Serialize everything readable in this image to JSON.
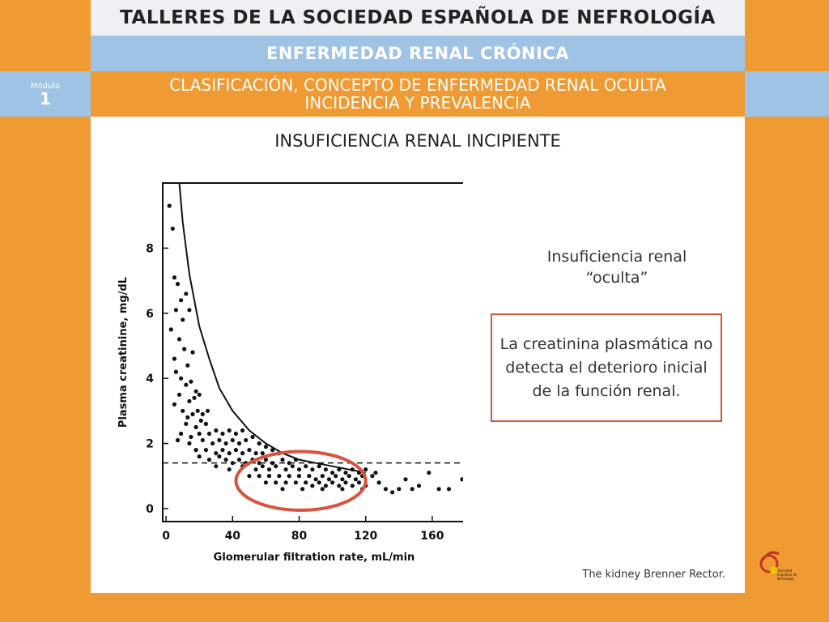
{
  "header": {
    "line1": "TALLERES DE LA SOCIEDAD ESPAÑOLA DE NEFROLOGÍA",
    "line2": "ENFERMEDAD RENAL CRÓNICA",
    "line3a": "CLASIFICACIÓN, CONCEPTO DE ENFERMEDAD RENAL OCULTA",
    "line3b": "INCIDENCIA Y PREVALENCIA"
  },
  "module": {
    "label": "Módulo",
    "number": "1"
  },
  "slide": {
    "title": "INSUFICIENCIA RENAL INCIPIENTE",
    "note_line1": "Insuficiencia renal",
    "note_line2": "“oculta”",
    "box_text": "La creatinina plasmática no detecta el deterioro inicial de la función renal.",
    "source": "The kidney Brenner Rector."
  },
  "logo": {
    "text1": "Sociedad",
    "text2": "Española de",
    "text3": "Nefrología"
  },
  "colors": {
    "orange": "#ef9a32",
    "blue": "#9ec3e4",
    "light": "#eef0f4",
    "highlight": "#d9533f"
  },
  "chart_data": {
    "type": "scatter",
    "xlabel": "Glomerular filtration rate, mL/min",
    "ylabel": "Plasma creatinine, mg/dL",
    "xlim": [
      -2,
      180
    ],
    "ylim": [
      -0.4,
      10
    ],
    "xticks": [
      0,
      40,
      80,
      120,
      160
    ],
    "yticks": [
      0,
      2,
      4,
      6,
      8
    ],
    "reference_line_y": 1.4,
    "highlight_ellipse": {
      "cx": 81,
      "cy": 0.85,
      "rx": 39,
      "ry": 0.9
    },
    "curve": [
      {
        "x": 8,
        "y": 10
      },
      {
        "x": 10,
        "y": 8.8
      },
      {
        "x": 14,
        "y": 7.2
      },
      {
        "x": 20,
        "y": 5.6
      },
      {
        "x": 26,
        "y": 4.6
      },
      {
        "x": 32,
        "y": 3.7
      },
      {
        "x": 40,
        "y": 3.0
      },
      {
        "x": 50,
        "y": 2.4
      },
      {
        "x": 60,
        "y": 2.0
      },
      {
        "x": 70,
        "y": 1.7
      },
      {
        "x": 80,
        "y": 1.5
      },
      {
        "x": 90,
        "y": 1.4
      },
      {
        "x": 100,
        "y": 1.3
      },
      {
        "x": 110,
        "y": 1.2
      },
      {
        "x": 120,
        "y": 1.1
      }
    ],
    "points": [
      {
        "x": 2,
        "y": 9.3
      },
      {
        "x": 4,
        "y": 8.6
      },
      {
        "x": 5,
        "y": 7.1
      },
      {
        "x": 7,
        "y": 6.9
      },
      {
        "x": 6,
        "y": 6.1
      },
      {
        "x": 3,
        "y": 5.5
      },
      {
        "x": 9,
        "y": 6.4
      },
      {
        "x": 12,
        "y": 6.6
      },
      {
        "x": 10,
        "y": 5.8
      },
      {
        "x": 14,
        "y": 6.1
      },
      {
        "x": 8,
        "y": 5.2
      },
      {
        "x": 11,
        "y": 4.9
      },
      {
        "x": 5,
        "y": 4.6
      },
      {
        "x": 13,
        "y": 4.4
      },
      {
        "x": 16,
        "y": 4.8
      },
      {
        "x": 6,
        "y": 4.2
      },
      {
        "x": 9,
        "y": 4.0
      },
      {
        "x": 12,
        "y": 3.8
      },
      {
        "x": 15,
        "y": 3.9
      },
      {
        "x": 18,
        "y": 3.6
      },
      {
        "x": 8,
        "y": 3.5
      },
      {
        "x": 14,
        "y": 3.3
      },
      {
        "x": 17,
        "y": 3.4
      },
      {
        "x": 20,
        "y": 3.5
      },
      {
        "x": 5,
        "y": 3.2
      },
      {
        "x": 10,
        "y": 3.0
      },
      {
        "x": 13,
        "y": 2.8
      },
      {
        "x": 16,
        "y": 2.9
      },
      {
        "x": 19,
        "y": 3.0
      },
      {
        "x": 22,
        "y": 2.9
      },
      {
        "x": 25,
        "y": 3.0
      },
      {
        "x": 12,
        "y": 2.6
      },
      {
        "x": 18,
        "y": 2.5
      },
      {
        "x": 21,
        "y": 2.7
      },
      {
        "x": 24,
        "y": 2.6
      },
      {
        "x": 9,
        "y": 2.3
      },
      {
        "x": 15,
        "y": 2.2
      },
      {
        "x": 20,
        "y": 2.3
      },
      {
        "x": 26,
        "y": 2.3
      },
      {
        "x": 30,
        "y": 2.4
      },
      {
        "x": 34,
        "y": 2.3
      },
      {
        "x": 38,
        "y": 2.4
      },
      {
        "x": 42,
        "y": 2.3
      },
      {
        "x": 46,
        "y": 2.4
      },
      {
        "x": 7,
        "y": 2.1
      },
      {
        "x": 14,
        "y": 2.0
      },
      {
        "x": 22,
        "y": 2.1
      },
      {
        "x": 28,
        "y": 2.0
      },
      {
        "x": 32,
        "y": 2.1
      },
      {
        "x": 36,
        "y": 2.0
      },
      {
        "x": 40,
        "y": 2.1
      },
      {
        "x": 44,
        "y": 2.0
      },
      {
        "x": 48,
        "y": 2.1
      },
      {
        "x": 52,
        "y": 2.2
      },
      {
        "x": 56,
        "y": 2.0
      },
      {
        "x": 60,
        "y": 1.9
      },
      {
        "x": 18,
        "y": 1.8
      },
      {
        "x": 24,
        "y": 1.8
      },
      {
        "x": 30,
        "y": 1.7
      },
      {
        "x": 34,
        "y": 1.8
      },
      {
        "x": 38,
        "y": 1.7
      },
      {
        "x": 42,
        "y": 1.8
      },
      {
        "x": 46,
        "y": 1.7
      },
      {
        "x": 50,
        "y": 1.8
      },
      {
        "x": 54,
        "y": 1.7
      },
      {
        "x": 58,
        "y": 1.7
      },
      {
        "x": 64,
        "y": 1.8
      },
      {
        "x": 68,
        "y": 1.7
      },
      {
        "x": 20,
        "y": 1.6
      },
      {
        "x": 26,
        "y": 1.5
      },
      {
        "x": 32,
        "y": 1.6
      },
      {
        "x": 36,
        "y": 1.5
      },
      {
        "x": 40,
        "y": 1.4
      },
      {
        "x": 44,
        "y": 1.5
      },
      {
        "x": 48,
        "y": 1.4
      },
      {
        "x": 52,
        "y": 1.5
      },
      {
        "x": 56,
        "y": 1.4
      },
      {
        "x": 60,
        "y": 1.5
      },
      {
        "x": 64,
        "y": 1.4
      },
      {
        "x": 70,
        "y": 1.5
      },
      {
        "x": 74,
        "y": 1.4
      },
      {
        "x": 78,
        "y": 1.5
      },
      {
        "x": 30,
        "y": 1.3
      },
      {
        "x": 38,
        "y": 1.2
      },
      {
        "x": 46,
        "y": 1.3
      },
      {
        "x": 54,
        "y": 1.2
      },
      {
        "x": 58,
        "y": 1.3
      },
      {
        "x": 62,
        "y": 1.2
      },
      {
        "x": 66,
        "y": 1.3
      },
      {
        "x": 72,
        "y": 1.2
      },
      {
        "x": 76,
        "y": 1.3
      },
      {
        "x": 80,
        "y": 1.2
      },
      {
        "x": 84,
        "y": 1.3
      },
      {
        "x": 88,
        "y": 1.2
      },
      {
        "x": 92,
        "y": 1.3
      },
      {
        "x": 96,
        "y": 1.2
      },
      {
        "x": 100,
        "y": 1.1
      },
      {
        "x": 104,
        "y": 1.2
      },
      {
        "x": 108,
        "y": 1.1
      },
      {
        "x": 112,
        "y": 1.2
      },
      {
        "x": 116,
        "y": 1.1
      },
      {
        "x": 120,
        "y": 1.2
      },
      {
        "x": 50,
        "y": 1.0
      },
      {
        "x": 56,
        "y": 1.0
      },
      {
        "x": 62,
        "y": 1.0
      },
      {
        "x": 68,
        "y": 1.0
      },
      {
        "x": 74,
        "y": 1.0
      },
      {
        "x": 80,
        "y": 1.0
      },
      {
        "x": 86,
        "y": 1.0
      },
      {
        "x": 90,
        "y": 0.9
      },
      {
        "x": 94,
        "y": 1.0
      },
      {
        "x": 98,
        "y": 0.9
      },
      {
        "x": 102,
        "y": 1.0
      },
      {
        "x": 106,
        "y": 0.9
      },
      {
        "x": 110,
        "y": 1.0
      },
      {
        "x": 114,
        "y": 0.9
      },
      {
        "x": 118,
        "y": 1.0
      },
      {
        "x": 124,
        "y": 1.0
      },
      {
        "x": 128,
        "y": 0.8
      },
      {
        "x": 60,
        "y": 0.8
      },
      {
        "x": 66,
        "y": 0.8
      },
      {
        "x": 72,
        "y": 0.8
      },
      {
        "x": 78,
        "y": 0.8
      },
      {
        "x": 84,
        "y": 0.8
      },
      {
        "x": 88,
        "y": 0.7
      },
      {
        "x": 92,
        "y": 0.8
      },
      {
        "x": 96,
        "y": 0.7
      },
      {
        "x": 100,
        "y": 0.8
      },
      {
        "x": 104,
        "y": 0.7
      },
      {
        "x": 108,
        "y": 0.8
      },
      {
        "x": 112,
        "y": 0.7
      },
      {
        "x": 116,
        "y": 0.8
      },
      {
        "x": 120,
        "y": 0.7
      },
      {
        "x": 70,
        "y": 0.6
      },
      {
        "x": 82,
        "y": 0.6
      },
      {
        "x": 94,
        "y": 0.6
      },
      {
        "x": 106,
        "y": 0.6
      },
      {
        "x": 118,
        "y": 0.6
      },
      {
        "x": 132,
        "y": 0.6
      },
      {
        "x": 136,
        "y": 0.5
      },
      {
        "x": 140,
        "y": 0.6
      },
      {
        "x": 144,
        "y": 0.9
      },
      {
        "x": 148,
        "y": 0.6
      },
      {
        "x": 126,
        "y": 1.1
      },
      {
        "x": 152,
        "y": 0.7
      },
      {
        "x": 158,
        "y": 1.1
      },
      {
        "x": 164,
        "y": 0.6
      },
      {
        "x": 170,
        "y": 0.6
      },
      {
        "x": 178,
        "y": 0.9
      }
    ]
  }
}
